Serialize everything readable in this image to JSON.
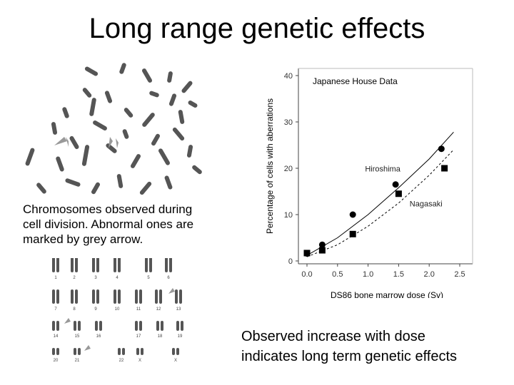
{
  "slide": {
    "title": "Long range genetic effects",
    "caption_left": [
      "Chromosomes observed during",
      "cell division. Abnormal ones are",
      "marked by grey arrow."
    ],
    "caption_right": [
      "Observed increase with dose",
      "indicates long term genetic effects"
    ]
  },
  "karyotype": {
    "numbers": [
      "1",
      "2",
      "3",
      "4",
      "5",
      "6",
      "7",
      "8",
      "9",
      "10",
      "11",
      "12",
      "13",
      "14",
      "15",
      "16",
      "17",
      "18",
      "19",
      "20",
      "21",
      "22",
      "X",
      "X"
    ]
  },
  "colors": {
    "chromosome": "#555555",
    "arrow": "#999999",
    "series": "#000000"
  },
  "chart_data": {
    "type": "scatter",
    "title": "Japanese House Data",
    "xlabel": "DS86 bone marrow dose (Sv)",
    "ylabel": "Percentage of cells with aberrations",
    "xlim": [
      0,
      2.5
    ],
    "ylim": [
      0,
      40
    ],
    "xticks": [
      "0.0",
      "0.5",
      "1.0",
      "1.5",
      "2.0",
      "2.5"
    ],
    "yticks": [
      "0",
      "10",
      "20",
      "30",
      "40"
    ],
    "grid": false,
    "series": [
      {
        "name": "Hiroshima",
        "marker": "circle",
        "line": "solid",
        "points": [
          [
            0.0,
            1.6
          ],
          [
            0.25,
            3.5
          ],
          [
            0.75,
            10.0
          ],
          [
            1.45,
            16.5
          ],
          [
            2.2,
            24.2
          ]
        ],
        "fit": [
          [
            0.0,
            1.2
          ],
          [
            0.5,
            5.0
          ],
          [
            1.0,
            10.0
          ],
          [
            1.5,
            15.8
          ],
          [
            2.0,
            22.0
          ],
          [
            2.4,
            27.8
          ]
        ]
      },
      {
        "name": "Nagasaki",
        "marker": "square",
        "line": "dashed",
        "points": [
          [
            0.0,
            1.7
          ],
          [
            0.25,
            2.3
          ],
          [
            0.75,
            5.8
          ],
          [
            1.5,
            14.5
          ],
          [
            2.25,
            20.0
          ]
        ],
        "fit": [
          [
            0.0,
            0.9
          ],
          [
            0.5,
            3.5
          ],
          [
            1.0,
            7.5
          ],
          [
            1.5,
            12.5
          ],
          [
            2.0,
            18.5
          ],
          [
            2.4,
            24.0
          ]
        ]
      }
    ]
  }
}
